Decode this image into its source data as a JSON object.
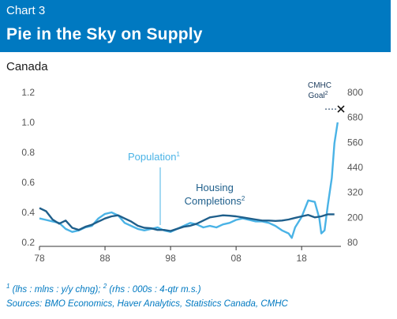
{
  "header": {
    "kicker": "Chart 3",
    "title": "Pie in the Sky on Supply"
  },
  "subtitle": "Canada",
  "colors": {
    "header_bg": "#0079c1",
    "population": "#4ab3e6",
    "housing": "#1f5f8b",
    "goal": "#1a3a5c"
  },
  "chart_data": {
    "type": "line",
    "x_ticks": [
      "78",
      "88",
      "98",
      "08",
      "18"
    ],
    "x_range": [
      1978,
      2024
    ],
    "y_left": {
      "ticks": [
        "0.2",
        "0.4",
        "0.6",
        "0.8",
        "1.0",
        "1.2"
      ],
      "range": [
        0.2,
        1.2
      ]
    },
    "y_right": {
      "ticks": [
        "80",
        "200",
        "320",
        "440",
        "560",
        "680",
        "800"
      ],
      "range": [
        80,
        800
      ]
    },
    "series": [
      {
        "name": "Population",
        "name_sup": "1",
        "axis": "left",
        "x": [
          1978,
          1979,
          1980,
          1981,
          1982,
          1983,
          1984,
          1985,
          1986,
          1987,
          1988,
          1989,
          1990,
          1991,
          1992,
          1993,
          1994,
          1995,
          1996,
          1997,
          1998,
          1999,
          2000,
          2001,
          2002,
          2003,
          2004,
          2005,
          2006,
          2007,
          2008,
          2009,
          2010,
          2011,
          2012,
          2013,
          2014,
          2015,
          2016,
          2016.5,
          2017,
          2018,
          2019,
          2020,
          2020.7,
          2021,
          2021.5,
          2022,
          2022.6,
          2023,
          2023.5
        ],
        "y": [
          0.36,
          0.35,
          0.34,
          0.33,
          0.29,
          0.27,
          0.28,
          0.3,
          0.31,
          0.36,
          0.39,
          0.4,
          0.38,
          0.33,
          0.31,
          0.29,
          0.28,
          0.29,
          0.3,
          0.28,
          0.27,
          0.29,
          0.31,
          0.33,
          0.32,
          0.3,
          0.31,
          0.3,
          0.32,
          0.33,
          0.35,
          0.36,
          0.35,
          0.34,
          0.34,
          0.33,
          0.31,
          0.28,
          0.26,
          0.23,
          0.3,
          0.37,
          0.48,
          0.47,
          0.36,
          0.26,
          0.28,
          0.45,
          0.63,
          0.86,
          1.0
        ]
      },
      {
        "name": "Housing Completions",
        "name_sup": "2",
        "axis": "right",
        "x": [
          1978,
          1979,
          1980,
          1981,
          1982,
          1983,
          1984,
          1985,
          1986,
          1987,
          1988,
          1989,
          1990,
          1991,
          1992,
          1993,
          1994,
          1995,
          1996,
          1997,
          1998,
          1999,
          2000,
          2001,
          2002,
          2003,
          2004,
          2005,
          2006,
          2007,
          2008,
          2009,
          2010,
          2011,
          2012,
          2013,
          2014,
          2015,
          2016,
          2017,
          2018,
          2019,
          2020,
          2021,
          2022,
          2023
        ],
        "y": [
          245,
          230,
          190,
          170,
          185,
          150,
          140,
          155,
          165,
          180,
          195,
          205,
          210,
          195,
          180,
          160,
          150,
          148,
          140,
          140,
          135,
          145,
          155,
          160,
          170,
          185,
          200,
          205,
          210,
          208,
          205,
          200,
          195,
          190,
          185,
          185,
          183,
          185,
          190,
          198,
          205,
          212,
          200,
          205,
          215,
          215
        ]
      }
    ],
    "annotations": {
      "population_label": "Population",
      "population_sup": "1",
      "housing_label_line1": "Housing",
      "housing_label_line2": "Completions",
      "housing_sup": "2",
      "goal_line1": "CMHC",
      "goal_line2": "Goal",
      "goal_sup": "2",
      "goal_point": {
        "x": 2024,
        "y_right": 720
      }
    },
    "grid": false,
    "legend": "none"
  },
  "notes": {
    "line1_sup_a": "1",
    "line1_text_a": " (lhs : mlns : y/y chng); ",
    "line1_sup_b": "2",
    "line1_text_b": " (rhs : 000s : 4-qtr m.s.)",
    "line2": "Sources: BMO Economics, Haver Analytics, Statistics Canada, CMHC"
  }
}
